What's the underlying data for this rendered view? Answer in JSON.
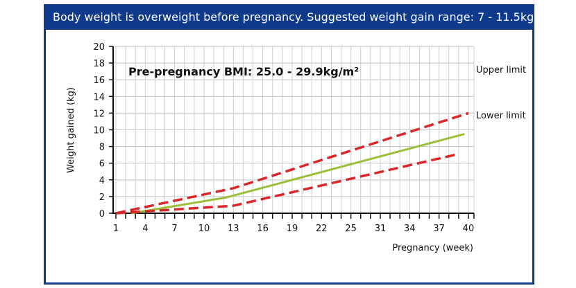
{
  "header": {
    "title": "Body weight is overweight before pregnancy. Suggested weight gain range: 7 - 11.5kg"
  },
  "colors": {
    "frame": "#0f3a8c",
    "recommended": "#9cbf3a",
    "limits": "#d9262b",
    "grid": "#cccccc"
  },
  "chart_data": {
    "type": "line",
    "title": "",
    "annotation": "Pre-pregnancy BMI: 25.0 - 29.9kg/m²",
    "xlabel": "Pregnancy (week)",
    "ylabel": "Weight gained (kg)",
    "ylim": [
      0,
      20
    ],
    "yticks": [
      "0",
      "2",
      "4",
      "6",
      "8",
      "10",
      "12",
      "14",
      "16",
      "18",
      "20"
    ],
    "xticks": [
      "1",
      "4",
      "7",
      "10",
      "13",
      "16",
      "19",
      "22",
      "25",
      "31",
      "34",
      "37",
      "40"
    ],
    "grid": true,
    "legend_labels": {
      "upper": "Upper limit",
      "lower": "Lower limit"
    },
    "series": [
      {
        "name": "Upper limit",
        "style": "dashed",
        "color": "#d9262b",
        "x": [
          1,
          13,
          40
        ],
        "y": [
          0,
          3.0,
          12.0
        ]
      },
      {
        "style": "solid",
        "color": "#9cbf3a",
        "x": [
          2.6,
          12.3,
          39.6
        ],
        "y": [
          0,
          1.9,
          9.5
        ]
      },
      {
        "name": "Lower limit",
        "style": "dashed",
        "color": "#d9262b",
        "x": [
          1,
          5,
          13,
          39
        ],
        "y": [
          0,
          0.3,
          0.9,
          7.1
        ]
      }
    ]
  }
}
